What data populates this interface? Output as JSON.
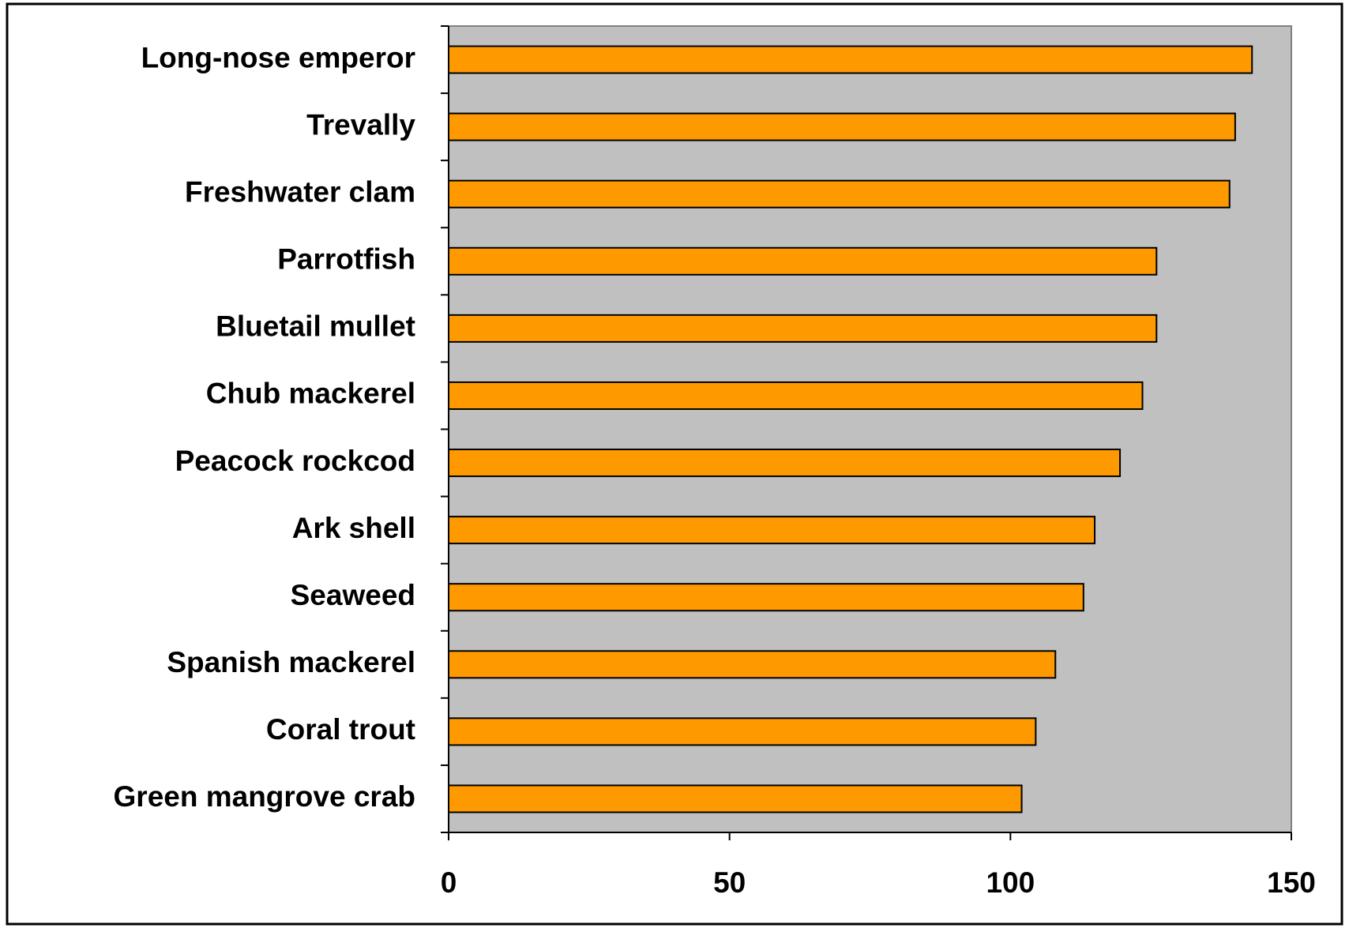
{
  "chart_data": {
    "type": "hbar",
    "categories": [
      "Long-nose emperor",
      "Trevally",
      "Freshwater clam",
      "Parrotfish",
      "Bluetail mullet",
      "Chub mackerel",
      "Peacock rockcod",
      "Ark shell",
      "Seaweed",
      "Spanish mackerel",
      "Coral trout",
      "Green mangrove crab"
    ],
    "values": [
      143,
      140,
      139,
      126,
      126,
      123.5,
      119.5,
      115,
      113,
      108,
      104.5,
      102
    ],
    "color": "#ff9900",
    "plot_background": "#c0c0c0",
    "xlim": [
      0,
      150
    ],
    "xticks": [
      0,
      50,
      100,
      150
    ]
  }
}
